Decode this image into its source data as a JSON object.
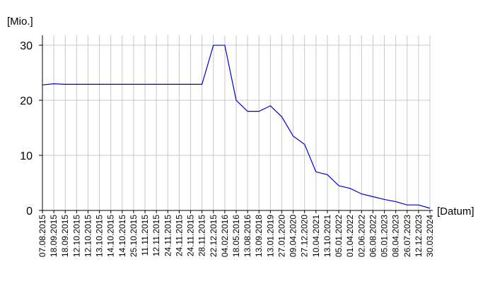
{
  "chart_data": {
    "type": "line",
    "y_label": "[Mio.]",
    "x_label": "[Datum]",
    "categories": [
      "07.08.2015",
      "18.09.2015",
      "18.09.2015",
      "12.10.2015",
      "12.10.2015",
      "13.10.2015",
      "14.10.2015",
      "14.10.2015",
      "25.10.2015",
      "11.11.2015",
      "12.11.2015",
      "24.11.2015",
      "24.11.2015",
      "24.11.2015",
      "28.11.2015",
      "22.12.2015",
      "04.02.2016",
      "18.05.2016",
      "13.08.2016",
      "13.09.2018",
      "13.01.2019",
      "27.01.2020",
      "09.04.2020",
      "27.12.2020",
      "10.04.2021",
      "13.10.2021",
      "05.01.2022",
      "01.04.2022",
      "02.06.2022",
      "06.08.2022",
      "05.01.2023",
      "08.04.2023",
      "26.07.2023",
      "12.12.2023",
      "30.03.2024"
    ],
    "series": [
      {
        "color": "#0000cc",
        "values": [
          22.8,
          23,
          22.9,
          22.9,
          22.9,
          22.9,
          22.9,
          22.9,
          22.9,
          22.9,
          22.9,
          22.9,
          22.9,
          22.9,
          22.9,
          30,
          30,
          20,
          18,
          18,
          19,
          17,
          13.5,
          12,
          7,
          6.5,
          4.5,
          4,
          3,
          2.5,
          2,
          1.6,
          1,
          1,
          0.4
        ]
      }
    ],
    "ylim": [
      0,
      31.8
    ],
    "yticks": [
      0,
      10,
      20,
      30
    ],
    "grid": true
  }
}
